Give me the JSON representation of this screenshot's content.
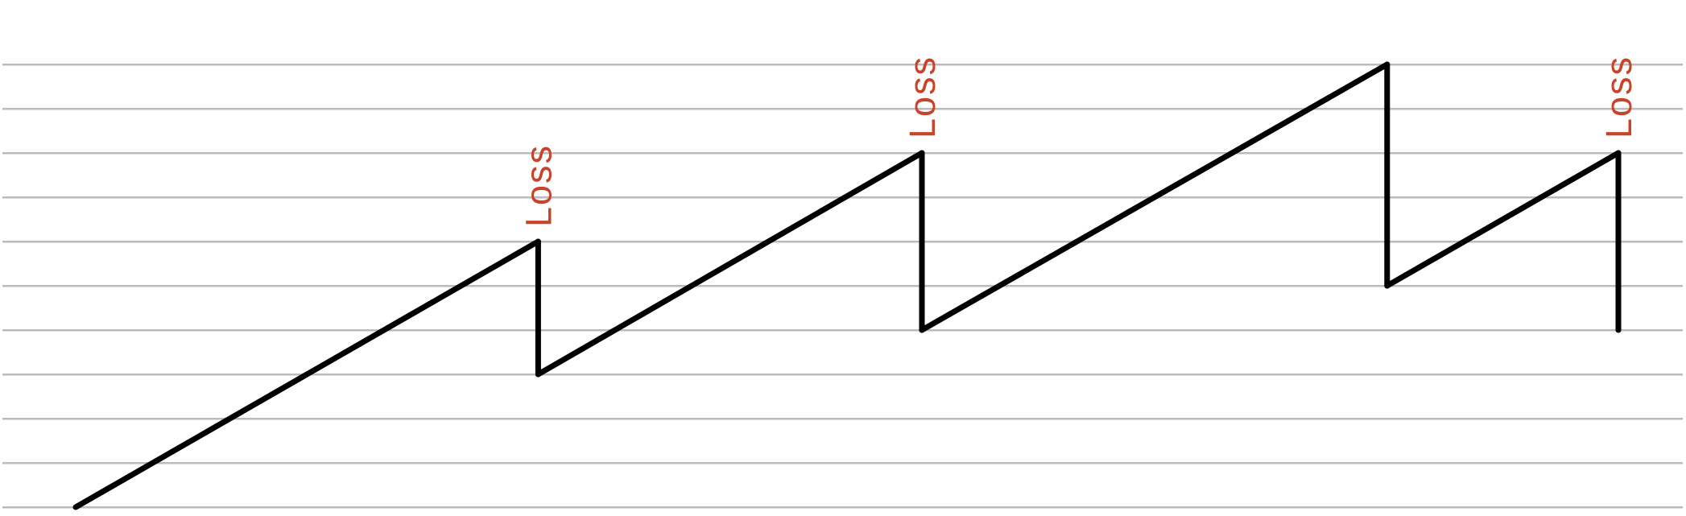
{
  "chart_data": {
    "type": "line",
    "title": "",
    "xlabel": "",
    "ylabel": "",
    "xlim": [
      0,
      24
    ],
    "ylim": [
      0,
      10
    ],
    "grid": true,
    "gridline_count": 11,
    "legend": "none",
    "series": [
      {
        "values": [
          {
            "x": 1,
            "y": 0
          },
          {
            "x": 7.64,
            "y": 6
          },
          {
            "x": 7.64,
            "y": 3
          },
          {
            "x": 13.15,
            "y": 8
          },
          {
            "x": 13.15,
            "y": 4
          },
          {
            "x": 19.83,
            "y": 10
          },
          {
            "x": 19.83,
            "y": 5
          },
          {
            "x": 23.15,
            "y": 8
          },
          {
            "x": 23.15,
            "y": 4
          }
        ]
      }
    ],
    "annotations": [
      {
        "text": "Loss",
        "x": 7.64,
        "y": 6
      },
      {
        "text": "Loss",
        "x": 13.15,
        "y": 8
      },
      {
        "text": "Loss",
        "x": 23.15,
        "y": 8
      }
    ],
    "colors": {
      "line": "#000000",
      "grid": "#bbbbbb",
      "annotation": "#c9432b",
      "background": "#ffffff"
    }
  }
}
